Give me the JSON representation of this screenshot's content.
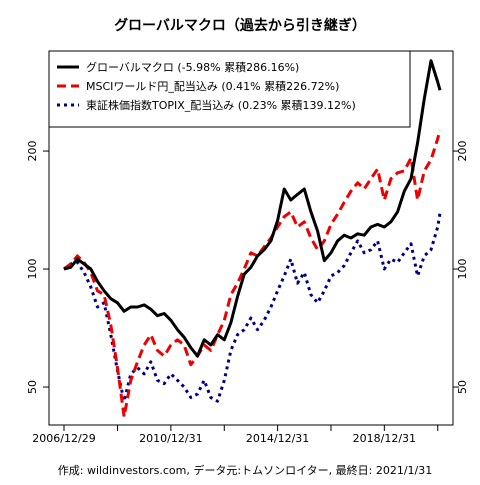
{
  "chart_data": {
    "type": "line",
    "title": "グローバルマクロ（過去から引き継ぎ）",
    "y_scale": "log",
    "ylim": [
      40,
      360
    ],
    "y_ticks": [
      50,
      100,
      200
    ],
    "x_tick_labels": [
      "2006/12/29",
      "2010/12/31",
      "2014/12/31",
      "2018/12/31"
    ],
    "xlim": [
      "2006-12-29",
      "2021-01-31"
    ],
    "legend_placement": "top-left",
    "footer": "作成: wildinvestors.com, データ元:トムソンロイター, 最終日: 2021/1/31",
    "series": [
      {
        "name": "グローバルマクロ (-5.98% 累積286.16%)",
        "color": "#000000",
        "style": "solid",
        "points": [
          [
            "2006-12-29",
            100
          ],
          [
            "2007-03-31",
            101
          ],
          [
            "2007-06-30",
            106
          ],
          [
            "2007-09-30",
            103
          ],
          [
            "2007-12-31",
            100
          ],
          [
            "2008-03-31",
            93
          ],
          [
            "2008-06-30",
            88
          ],
          [
            "2008-09-30",
            84
          ],
          [
            "2008-12-31",
            82
          ],
          [
            "2009-03-31",
            78
          ],
          [
            "2009-06-30",
            80
          ],
          [
            "2009-09-30",
            80
          ],
          [
            "2009-12-31",
            81
          ],
          [
            "2010-03-31",
            79
          ],
          [
            "2010-06-30",
            76
          ],
          [
            "2010-09-30",
            77
          ],
          [
            "2010-12-31",
            74
          ],
          [
            "2011-03-31",
            70
          ],
          [
            "2011-06-30",
            67
          ],
          [
            "2011-09-30",
            63
          ],
          [
            "2011-12-31",
            60
          ],
          [
            "2012-03-31",
            66
          ],
          [
            "2012-06-30",
            64
          ],
          [
            "2012-09-30",
            68
          ],
          [
            "2012-12-31",
            66
          ],
          [
            "2013-03-31",
            73
          ],
          [
            "2013-06-30",
            85
          ],
          [
            "2013-09-30",
            97
          ],
          [
            "2013-12-31",
            101
          ],
          [
            "2014-03-31",
            108
          ],
          [
            "2014-06-30",
            112
          ],
          [
            "2014-09-30",
            118
          ],
          [
            "2014-12-31",
            133
          ],
          [
            "2015-03-31",
            160
          ],
          [
            "2015-06-30",
            150
          ],
          [
            "2015-09-30",
            155
          ],
          [
            "2015-12-31",
            160
          ],
          [
            "2016-03-31",
            140
          ],
          [
            "2016-06-30",
            125
          ],
          [
            "2016-09-30",
            105
          ],
          [
            "2016-12-31",
            110
          ],
          [
            "2017-03-31",
            118
          ],
          [
            "2017-06-30",
            122
          ],
          [
            "2017-09-30",
            120
          ],
          [
            "2017-12-31",
            123
          ],
          [
            "2018-03-31",
            122
          ],
          [
            "2018-06-30",
            128
          ],
          [
            "2018-09-30",
            130
          ],
          [
            "2018-12-31",
            128
          ],
          [
            "2019-03-31",
            132
          ],
          [
            "2019-06-30",
            140
          ],
          [
            "2019-09-30",
            158
          ],
          [
            "2019-12-31",
            170
          ],
          [
            "2020-03-31",
            210
          ],
          [
            "2020-06-30",
            272
          ],
          [
            "2020-09-30",
            340
          ],
          [
            "2020-12-31",
            300
          ],
          [
            "2021-01-31",
            286
          ]
        ]
      },
      {
        "name": "MSCIワールド円_配当込み (0.41% 累積226.72%)",
        "color": "#ee0000",
        "style": "dashed",
        "points": [
          [
            "2006-12-29",
            100
          ],
          [
            "2007-03-31",
            103
          ],
          [
            "2007-06-30",
            108
          ],
          [
            "2007-09-30",
            104
          ],
          [
            "2007-12-31",
            98
          ],
          [
            "2008-03-31",
            88
          ],
          [
            "2008-06-30",
            86
          ],
          [
            "2008-09-30",
            72
          ],
          [
            "2008-12-31",
            56
          ],
          [
            "2009-03-31",
            42
          ],
          [
            "2009-06-30",
            52
          ],
          [
            "2009-09-30",
            58
          ],
          [
            "2009-12-31",
            64
          ],
          [
            "2010-03-31",
            68
          ],
          [
            "2010-06-30",
            62
          ],
          [
            "2010-09-30",
            60
          ],
          [
            "2010-12-31",
            64
          ],
          [
            "2011-03-31",
            66
          ],
          [
            "2011-06-30",
            64
          ],
          [
            "2011-09-30",
            57
          ],
          [
            "2011-12-31",
            60
          ],
          [
            "2012-03-31",
            64
          ],
          [
            "2012-06-30",
            62
          ],
          [
            "2012-09-30",
            68
          ],
          [
            "2012-12-31",
            74
          ],
          [
            "2013-03-31",
            86
          ],
          [
            "2013-06-30",
            92
          ],
          [
            "2013-09-30",
            100
          ],
          [
            "2013-12-31",
            110
          ],
          [
            "2014-03-31",
            108
          ],
          [
            "2014-06-30",
            114
          ],
          [
            "2014-09-30",
            120
          ],
          [
            "2014-12-31",
            128
          ],
          [
            "2015-03-31",
            136
          ],
          [
            "2015-06-30",
            140
          ],
          [
            "2015-09-30",
            128
          ],
          [
            "2015-12-31",
            132
          ],
          [
            "2016-03-31",
            120
          ],
          [
            "2016-06-30",
            112
          ],
          [
            "2016-09-30",
            118
          ],
          [
            "2016-12-31",
            130
          ],
          [
            "2017-03-31",
            138
          ],
          [
            "2017-06-30",
            148
          ],
          [
            "2017-09-30",
            158
          ],
          [
            "2017-12-31",
            166
          ],
          [
            "2018-03-31",
            160
          ],
          [
            "2018-06-30",
            170
          ],
          [
            "2018-09-30",
            180
          ],
          [
            "2018-12-31",
            150
          ],
          [
            "2019-03-31",
            170
          ],
          [
            "2019-06-30",
            176
          ],
          [
            "2019-09-30",
            178
          ],
          [
            "2019-12-31",
            192
          ],
          [
            "2020-03-31",
            150
          ],
          [
            "2020-06-30",
            178
          ],
          [
            "2020-09-30",
            190
          ],
          [
            "2020-12-31",
            215
          ],
          [
            "2021-01-31",
            226
          ]
        ]
      },
      {
        "name": "東証株価指数TOPIX_配当込み (0.23% 累積139.12%)",
        "color": "#000080",
        "style": "dotted",
        "points": [
          [
            "2006-12-29",
            100
          ],
          [
            "2007-03-31",
            103
          ],
          [
            "2007-06-30",
            104
          ],
          [
            "2007-09-30",
            98
          ],
          [
            "2007-12-31",
            90
          ],
          [
            "2008-03-31",
            80
          ],
          [
            "2008-06-30",
            82
          ],
          [
            "2008-09-30",
            68
          ],
          [
            "2008-12-31",
            55
          ],
          [
            "2009-03-31",
            46
          ],
          [
            "2009-06-30",
            54
          ],
          [
            "2009-09-30",
            56
          ],
          [
            "2009-12-31",
            54
          ],
          [
            "2010-03-31",
            58
          ],
          [
            "2010-06-30",
            52
          ],
          [
            "2010-09-30",
            51
          ],
          [
            "2010-12-31",
            54
          ],
          [
            "2011-03-31",
            52
          ],
          [
            "2011-06-30",
            50
          ],
          [
            "2011-09-30",
            47
          ],
          [
            "2011-12-31",
            48
          ],
          [
            "2012-03-31",
            52
          ],
          [
            "2012-06-30",
            47
          ],
          [
            "2012-09-30",
            46
          ],
          [
            "2012-12-31",
            52
          ],
          [
            "2013-03-31",
            62
          ],
          [
            "2013-06-30",
            68
          ],
          [
            "2013-09-30",
            70
          ],
          [
            "2013-12-31",
            75
          ],
          [
            "2014-03-31",
            70
          ],
          [
            "2014-06-30",
            74
          ],
          [
            "2014-09-30",
            80
          ],
          [
            "2014-12-31",
            88
          ],
          [
            "2015-03-31",
            96
          ],
          [
            "2015-06-30",
            106
          ],
          [
            "2015-09-30",
            92
          ],
          [
            "2015-12-31",
            98
          ],
          [
            "2016-03-31",
            86
          ],
          [
            "2016-06-30",
            82
          ],
          [
            "2016-09-30",
            88
          ],
          [
            "2016-12-31",
            96
          ],
          [
            "2017-03-31",
            98
          ],
          [
            "2017-06-30",
            102
          ],
          [
            "2017-09-30",
            110
          ],
          [
            "2017-12-31",
            118
          ],
          [
            "2018-03-31",
            110
          ],
          [
            "2018-06-30",
            112
          ],
          [
            "2018-09-30",
            118
          ],
          [
            "2018-12-31",
            100
          ],
          [
            "2019-03-31",
            106
          ],
          [
            "2019-06-30",
            104
          ],
          [
            "2019-09-30",
            110
          ],
          [
            "2019-12-31",
            116
          ],
          [
            "2020-03-31",
            96
          ],
          [
            "2020-06-30",
            108
          ],
          [
            "2020-09-30",
            112
          ],
          [
            "2020-12-31",
            128
          ],
          [
            "2021-01-31",
            139
          ]
        ]
      }
    ]
  }
}
